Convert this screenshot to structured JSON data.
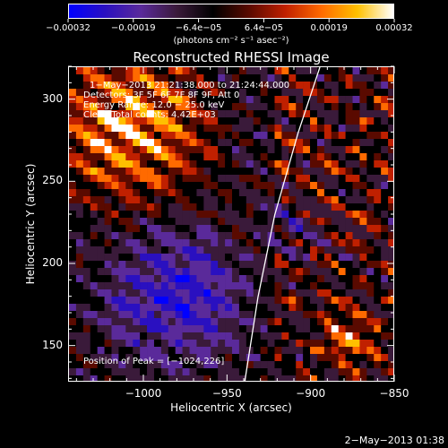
{
  "chart_data": {
    "type": "heatmap",
    "title": "Reconstructed RHESSI Image",
    "xlabel": "Heliocentric X (arcsec)",
    "ylabel": "Heliocentric Y (arcsec)",
    "xlim": [
      -1045,
      -850
    ],
    "ylim": [
      128,
      320
    ],
    "x_ticks": [
      -1000,
      -950,
      -900,
      -850
    ],
    "x_tick_labels": [
      "−1000",
      "−950",
      "−900",
      "−850"
    ],
    "y_ticks": [
      150,
      200,
      250,
      300
    ],
    "y_tick_labels": [
      "150",
      "200",
      "250",
      "300"
    ],
    "colorbar": {
      "min": -0.00032,
      "max": 0.00032,
      "tick_labels": [
        "−0.00032",
        "−0.00019",
        "−6.4e−05",
        "6.4e−05",
        "0.00019",
        "0.00032"
      ],
      "unit_label": "(photons cm⁻² s⁻¹ asec⁻²)",
      "colormap": [
        "#0000ff",
        "#2a10c0",
        "#5a2a9a",
        "#3a1a3a",
        "#000000",
        "#5a0a00",
        "#c02000",
        "#ff6a00",
        "#ffc000",
        "#ffffff"
      ]
    },
    "limb_curve": [
      [
        -940,
        128
      ],
      [
        -932,
        180
      ],
      [
        -922,
        230
      ],
      [
        -908,
        280
      ],
      [
        -895,
        320
      ]
    ],
    "annotations": {
      "time_range": "1−May−2013 21:21:38.000 to 21:24:44.000",
      "detectors": "Detectors: 3F 5F 6F 7F 8F 9F, Att 0",
      "energy": "Energy Range: 12.0 − 25.0 keV",
      "method": "Clean    Total counts: 4.42E+03",
      "peak": "Position of Peak = [−1024,226]"
    }
  },
  "footer": {
    "date": "2−May−2013 01:38"
  }
}
